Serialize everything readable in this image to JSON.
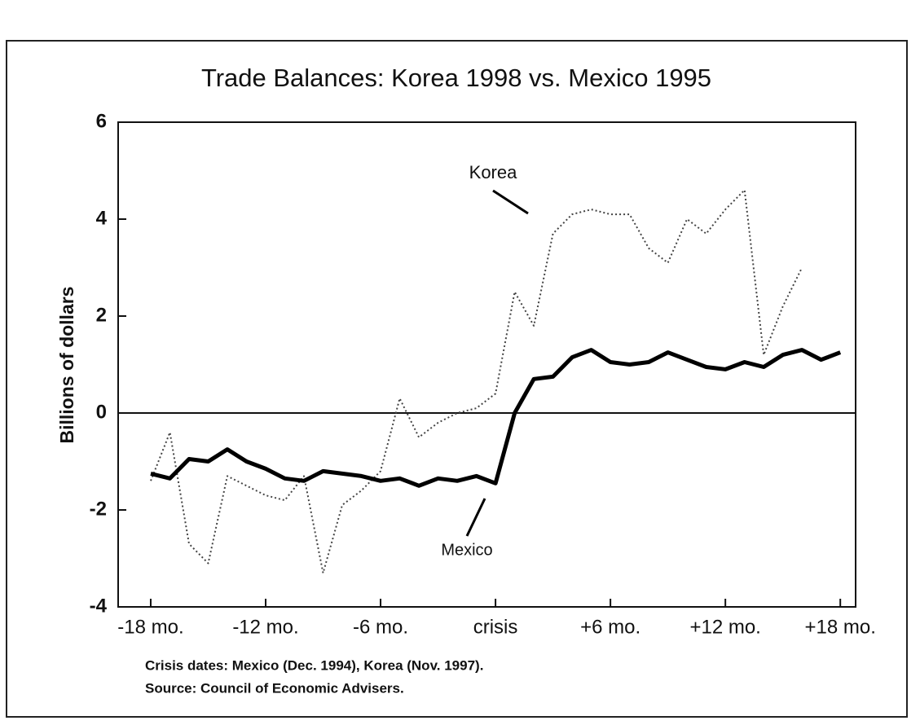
{
  "chart_data": {
    "type": "line",
    "title": "Trade Balances: Korea 1998 vs. Mexico 1995",
    "y_label": "Billions of dollars",
    "x": [
      -18,
      -17,
      -16,
      -15,
      -14,
      -13,
      -12,
      -11,
      -10,
      -9,
      -8,
      -7,
      -6,
      -5,
      -4,
      -3,
      -2,
      -1,
      0,
      1,
      2,
      3,
      4,
      5,
      6,
      7,
      8,
      9,
      10,
      11,
      12,
      13,
      14,
      15,
      16,
      17,
      18
    ],
    "series": [
      {
        "name": "Korea",
        "color": "#444444",
        "style": "dotted",
        "values": [
          -1.4,
          -0.4,
          -2.7,
          -3.1,
          -1.3,
          -1.5,
          -1.7,
          -1.8,
          -1.3,
          -3.3,
          -1.9,
          -1.6,
          -1.2,
          0.3,
          -0.5,
          -0.2,
          0.0,
          0.1,
          0.4,
          2.5,
          1.8,
          3.7,
          4.1,
          4.2,
          4.1,
          4.1,
          3.4,
          3.1,
          4.0,
          3.7,
          4.2,
          4.6,
          1.2,
          2.2,
          3.0,
          null,
          null
        ]
      },
      {
        "name": "Mexico",
        "color": "#000000",
        "style": "solid",
        "values": [
          -1.25,
          -1.35,
          -0.95,
          -1.0,
          -0.75,
          -1.0,
          -1.15,
          -1.35,
          -1.4,
          -1.2,
          -1.25,
          -1.3,
          -1.4,
          -1.35,
          -1.5,
          -1.35,
          -1.4,
          -1.3,
          -1.45,
          0.0,
          0.7,
          0.75,
          1.15,
          1.3,
          1.05,
          1.0,
          1.05,
          1.25,
          1.1,
          0.95,
          0.9,
          1.05,
          0.95,
          1.2,
          1.3,
          1.1,
          1.25
        ]
      }
    ],
    "xlim": [
      -19.7,
      18.8
    ],
    "ylim": [
      -4,
      6
    ],
    "yticks": [
      -4,
      -2,
      0,
      2,
      4,
      6
    ],
    "xticks": [
      {
        "value": -18,
        "label": "-18 mo."
      },
      {
        "value": -12,
        "label": "-12 mo."
      },
      {
        "value": -6,
        "label": "-6 mo."
      },
      {
        "value": 0,
        "label": "crisis"
      },
      {
        "value": 6,
        "label": "+6 mo."
      },
      {
        "value": 12,
        "label": "+12 mo."
      },
      {
        "value": 18,
        "label": "+18 mo."
      }
    ],
    "notes": [
      "Crisis dates: Mexico (Dec. 1994), Korea (Nov. 1997).",
      "Source: Council of Economic Advisers."
    ]
  }
}
